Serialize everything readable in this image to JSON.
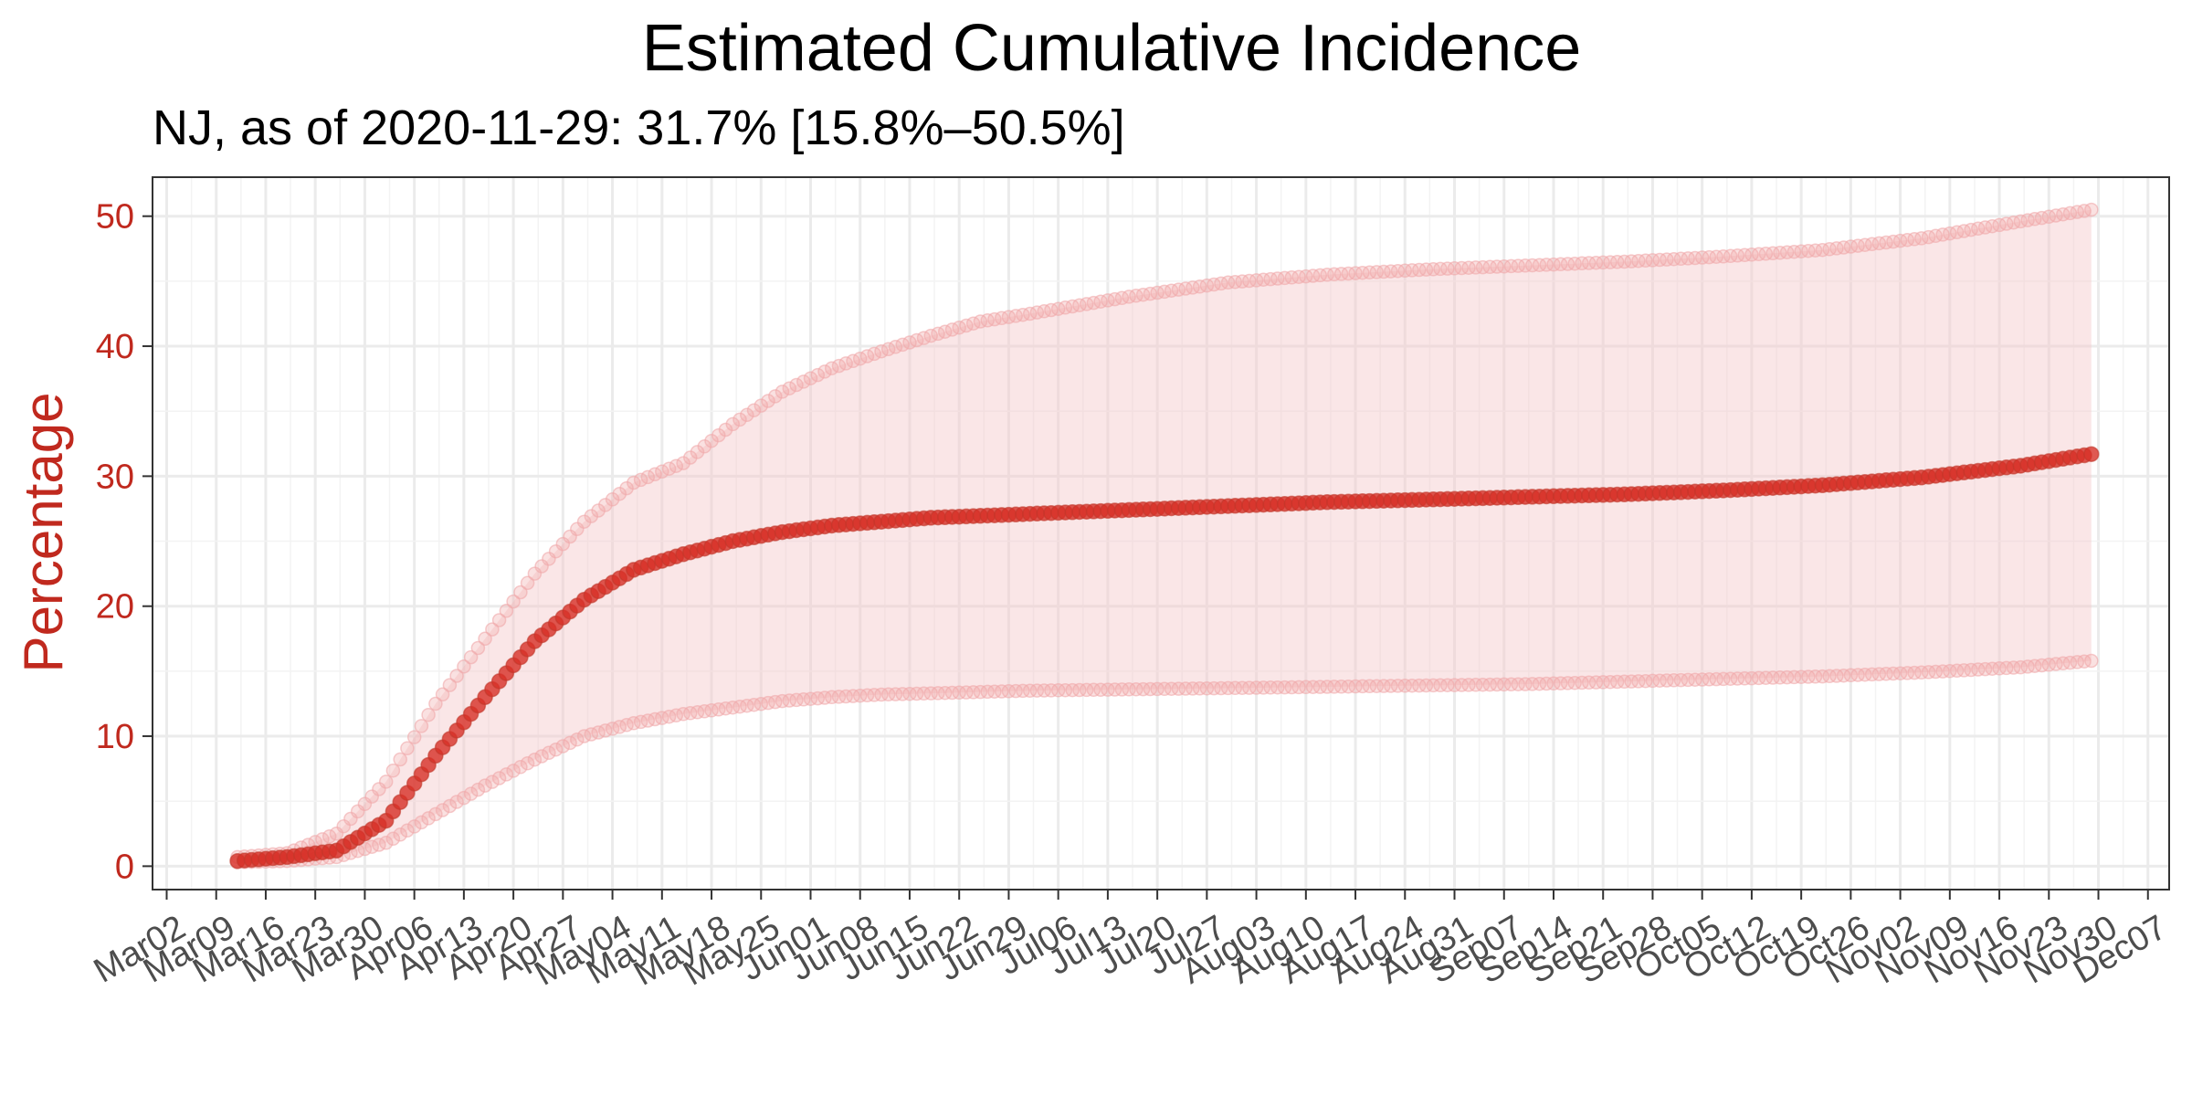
{
  "chart_data": {
    "type": "line",
    "title": "Estimated Cumulative Incidence",
    "subtitle": "NJ, as of 2020-11-29:  31.7% [15.8%–50.5%]",
    "xlabel": "",
    "ylabel": "Percentage",
    "ylim": [
      -1.8,
      53
    ],
    "yticks": [
      0,
      10,
      20,
      30,
      40,
      50
    ],
    "xlim": [
      "2020-02-29",
      "2020-12-10"
    ],
    "x_tick_labels": [
      "Mar02",
      "Mar09",
      "Mar16",
      "Mar23",
      "Mar30",
      "Apr06",
      "Apr13",
      "Apr20",
      "Apr27",
      "May04",
      "May11",
      "May18",
      "May25",
      "Jun01",
      "Jun08",
      "Jun15",
      "Jun22",
      "Jun29",
      "Jul06",
      "Jul13",
      "Jul20",
      "Jul27",
      "Aug03",
      "Aug10",
      "Aug17",
      "Aug24",
      "Aug31",
      "Sep07",
      "Sep14",
      "Sep21",
      "Sep28",
      "Oct05",
      "Oct12",
      "Oct19",
      "Oct26",
      "Nov02",
      "Nov09",
      "Nov16",
      "Nov23",
      "Nov30",
      "Dec07"
    ],
    "x_tick_dates": [
      "2020-03-02",
      "2020-03-09",
      "2020-03-16",
      "2020-03-23",
      "2020-03-30",
      "2020-04-06",
      "2020-04-13",
      "2020-04-20",
      "2020-04-27",
      "2020-05-04",
      "2020-05-11",
      "2020-05-18",
      "2020-05-25",
      "2020-06-01",
      "2020-06-08",
      "2020-06-15",
      "2020-06-22",
      "2020-06-29",
      "2020-07-06",
      "2020-07-13",
      "2020-07-20",
      "2020-07-27",
      "2020-08-03",
      "2020-08-10",
      "2020-08-17",
      "2020-08-24",
      "2020-08-31",
      "2020-09-07",
      "2020-09-14",
      "2020-09-21",
      "2020-09-28",
      "2020-10-05",
      "2020-10-12",
      "2020-10-19",
      "2020-10-26",
      "2020-11-02",
      "2020-11-09",
      "2020-11-16",
      "2020-11-23",
      "2020-11-30",
      "2020-12-07"
    ],
    "grid": true,
    "colors": {
      "estimate": "#d73027",
      "band": "#f4c7ca",
      "bound_points": "#f0a8aa",
      "ytick_text": "#c0291e",
      "ylabel_text": "#c0291e"
    },
    "series": [
      {
        "name": "estimate",
        "x": [
          "2020-03-12",
          "2020-03-19",
          "2020-03-26",
          "2020-04-02",
          "2020-04-09",
          "2020-04-16",
          "2020-04-23",
          "2020-04-30",
          "2020-05-07",
          "2020-05-14",
          "2020-05-21",
          "2020-05-28",
          "2020-06-04",
          "2020-06-11",
          "2020-06-18",
          "2020-07-02",
          "2020-07-16",
          "2020-07-30",
          "2020-08-13",
          "2020-08-27",
          "2020-09-10",
          "2020-09-24",
          "2020-10-08",
          "2020-10-22",
          "2020-11-05",
          "2020-11-19",
          "2020-11-29"
        ],
        "values": [
          0.4,
          0.7,
          1.2,
          3.5,
          8.5,
          13.0,
          17.3,
          20.5,
          22.8,
          24.0,
          25.0,
          25.7,
          26.2,
          26.5,
          26.8,
          27.1,
          27.4,
          27.7,
          28.0,
          28.2,
          28.4,
          28.6,
          28.9,
          29.3,
          29.9,
          30.8,
          31.7
        ]
      },
      {
        "name": "upper",
        "x": [
          "2020-03-12",
          "2020-03-19",
          "2020-03-26",
          "2020-04-02",
          "2020-04-09",
          "2020-04-16",
          "2020-04-23",
          "2020-04-30",
          "2020-05-07",
          "2020-05-14",
          "2020-05-21",
          "2020-05-28",
          "2020-06-04",
          "2020-06-11",
          "2020-06-18",
          "2020-06-25",
          "2020-07-02",
          "2020-07-16",
          "2020-07-30",
          "2020-08-13",
          "2020-08-27",
          "2020-09-10",
          "2020-09-24",
          "2020-10-08",
          "2020-10-22",
          "2020-11-05",
          "2020-11-19",
          "2020-11-29"
        ],
        "values": [
          0.7,
          1.0,
          2.5,
          6.5,
          12.5,
          17.5,
          22.5,
          26.5,
          29.5,
          31.0,
          34.0,
          36.5,
          38.3,
          39.6,
          40.8,
          41.9,
          42.5,
          43.8,
          44.9,
          45.5,
          45.9,
          46.2,
          46.5,
          46.9,
          47.4,
          48.3,
          49.6,
          50.5
        ]
      },
      {
        "name": "lower",
        "x": [
          "2020-03-12",
          "2020-03-19",
          "2020-03-26",
          "2020-04-02",
          "2020-04-09",
          "2020-04-16",
          "2020-04-23",
          "2020-04-30",
          "2020-05-07",
          "2020-05-14",
          "2020-05-21",
          "2020-05-28",
          "2020-06-04",
          "2020-06-11",
          "2020-06-18",
          "2020-07-02",
          "2020-07-16",
          "2020-07-30",
          "2020-08-13",
          "2020-08-27",
          "2020-09-10",
          "2020-09-24",
          "2020-10-08",
          "2020-10-22",
          "2020-11-05",
          "2020-11-19",
          "2020-11-29"
        ],
        "values": [
          0.3,
          0.4,
          0.7,
          1.8,
          4.0,
          6.2,
          8.2,
          10.0,
          11.0,
          11.7,
          12.2,
          12.7,
          13.0,
          13.2,
          13.3,
          13.5,
          13.6,
          13.7,
          13.8,
          13.9,
          14.0,
          14.2,
          14.4,
          14.6,
          14.9,
          15.3,
          15.8
        ]
      }
    ]
  }
}
